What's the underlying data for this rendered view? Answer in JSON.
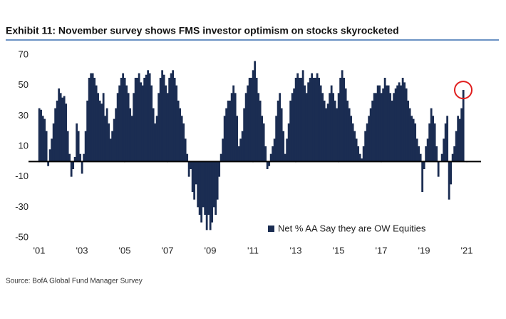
{
  "chart_data": {
    "type": "bar",
    "title": "Exhibit 11: November survey shows FMS investor optimism on stocks skyrocketed",
    "source": "Source: BofA Global Fund Manager Survey",
    "series": [
      {
        "name": "Net % AA Say they are OW Equities",
        "color": "#1b2d52",
        "values": [
          35,
          34,
          30,
          28,
          20,
          -3,
          8,
          15,
          25,
          35,
          40,
          48,
          45,
          42,
          43,
          38,
          20,
          5,
          -10,
          -5,
          3,
          25,
          20,
          5,
          -8,
          5,
          20,
          40,
          55,
          58,
          58,
          55,
          50,
          45,
          40,
          38,
          45,
          30,
          35,
          25,
          15,
          20,
          28,
          35,
          45,
          50,
          55,
          58,
          55,
          50,
          45,
          35,
          30,
          45,
          55,
          55,
          58,
          52,
          50,
          55,
          57,
          60,
          58,
          50,
          35,
          25,
          30,
          45,
          55,
          60,
          57,
          50,
          45,
          55,
          58,
          60,
          55,
          50,
          40,
          35,
          30,
          25,
          15,
          5,
          -10,
          -5,
          -20,
          -25,
          -15,
          -30,
          -35,
          -40,
          -30,
          -35,
          -45,
          -35,
          -45,
          -40,
          -30,
          -35,
          -25,
          -10,
          5,
          15,
          30,
          35,
          40,
          40,
          45,
          50,
          45,
          30,
          10,
          15,
          20,
          35,
          45,
          50,
          55,
          55,
          60,
          66,
          55,
          45,
          40,
          30,
          25,
          10,
          -5,
          -3,
          5,
          10,
          15,
          30,
          40,
          45,
          35,
          20,
          5,
          15,
          25,
          40,
          45,
          48,
          55,
          58,
          55,
          55,
          60,
          50,
          45,
          52,
          55,
          58,
          55,
          55,
          58,
          55,
          50,
          45,
          40,
          35,
          38,
          45,
          50,
          45,
          40,
          35,
          45,
          55,
          60,
          55,
          48,
          40,
          35,
          30,
          25,
          20,
          15,
          10,
          5,
          2,
          10,
          20,
          25,
          30,
          35,
          40,
          45,
          45,
          50,
          50,
          45,
          48,
          55,
          50,
          50,
          45,
          40,
          45,
          48,
          50,
          52,
          50,
          55,
          52,
          48,
          40,
          35,
          30,
          28,
          25,
          15,
          10,
          5,
          -20,
          -5,
          10,
          15,
          25,
          35,
          30,
          25,
          10,
          -10,
          0,
          5,
          15,
          25,
          30,
          -25,
          -15,
          5,
          10,
          20,
          30,
          28,
          35,
          47
        ]
      }
    ],
    "xlim": [
      -6,
      248
    ],
    "xticks": [
      {
        "value": 0,
        "label": "'01"
      },
      {
        "value": 24,
        "label": "'03"
      },
      {
        "value": 48,
        "label": "'05"
      },
      {
        "value": 72,
        "label": "'07"
      },
      {
        "value": 96,
        "label": "'09"
      },
      {
        "value": 120,
        "label": "'11"
      },
      {
        "value": 144,
        "label": "'13"
      },
      {
        "value": 168,
        "label": "'15"
      },
      {
        "value": 192,
        "label": "'17"
      },
      {
        "value": 216,
        "label": "'19"
      },
      {
        "value": 240,
        "label": "'21"
      }
    ],
    "ylim": [
      -50,
      70
    ],
    "yticks": [
      -50,
      -30,
      -10,
      10,
      30,
      50,
      70
    ]
  }
}
